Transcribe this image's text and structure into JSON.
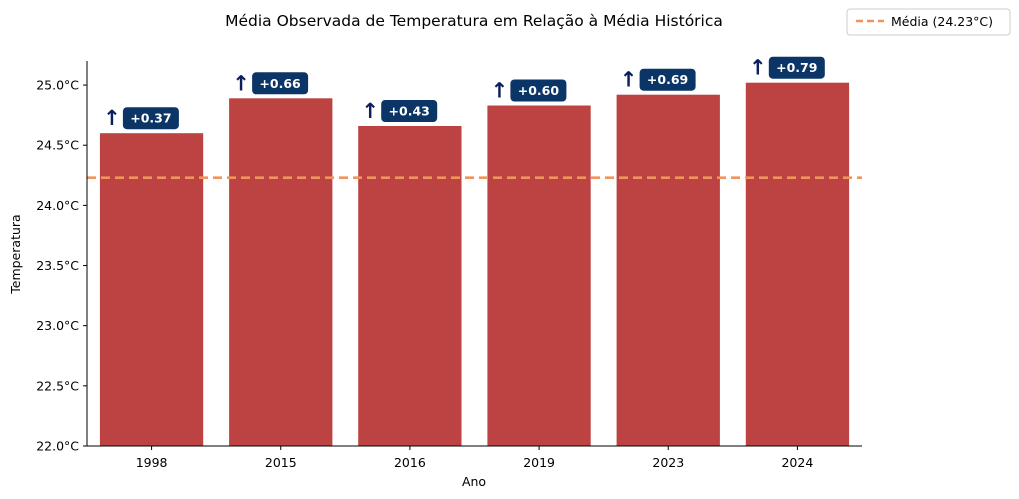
{
  "chart_data": {
    "type": "bar",
    "title": "Média Observada de Temperatura em Relação à Média Histórica",
    "xlabel": "Ano",
    "ylabel": "Temperatura",
    "categories": [
      "1998",
      "2015",
      "2016",
      "2019",
      "2023",
      "2024"
    ],
    "values": [
      24.6,
      24.89,
      24.66,
      24.83,
      24.92,
      25.02
    ],
    "ylim": [
      22.0,
      25.2
    ],
    "yticks": [
      "22.0°C",
      "22.5°C",
      "23.0°C",
      "23.5°C",
      "24.0°C",
      "24.5°C",
      "25.0°C"
    ],
    "ytick_values": [
      22.0,
      22.5,
      23.0,
      23.5,
      24.0,
      24.5,
      25.0
    ],
    "reference_line": {
      "value": 24.23,
      "label": "Média (24.23°C)",
      "color": "#f0955a",
      "style": "dashed"
    },
    "annotations": [
      {
        "category": "1998",
        "arrow": "↑",
        "text": "+0.37"
      },
      {
        "category": "2015",
        "arrow": "↑",
        "text": "+0.66"
      },
      {
        "category": "2016",
        "arrow": "↑",
        "text": "+0.43"
      },
      {
        "category": "2019",
        "arrow": "↑",
        "text": "+0.60"
      },
      {
        "category": "2023",
        "arrow": "↑",
        "text": "+0.69"
      },
      {
        "category": "2024",
        "arrow": "↑",
        "text": "+0.79"
      }
    ],
    "legend": {
      "placement": "top-right",
      "entries": [
        "Média (24.23°C)"
      ]
    },
    "grid": false,
    "colors": {
      "bar": "#bd4343",
      "badge": "#0b3566",
      "arrow": "#0b1f5a",
      "mean_line": "#f0955a"
    }
  }
}
